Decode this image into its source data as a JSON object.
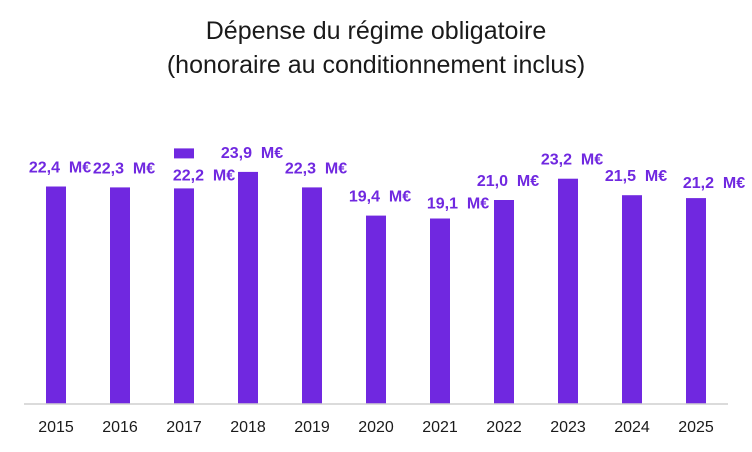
{
  "chart_data": {
    "type": "bar",
    "title": "Dépense du régime obligatoire",
    "subtitle": "(honoraire au conditionnement inclus)",
    "categories": [
      "2015",
      "2016",
      "2017",
      "2018",
      "2019",
      "2020",
      "2021",
      "2022",
      "2023",
      "2024",
      "2025"
    ],
    "values": [
      22.4,
      22.3,
      22.2,
      23.9,
      22.3,
      19.4,
      19.1,
      21.0,
      23.2,
      21.5,
      21.2
    ],
    "data_labels": [
      "22,4  M€",
      "22,3  M€",
      "22,2  M€",
      "23,9  M€",
      "22,3  M€",
      "19,4  M€",
      "19,1  M€",
      "21,0  M€",
      "23,2  M€",
      "21,5  M€",
      "21,2  M€"
    ],
    "xlabel": "",
    "ylabel": "",
    "ylim": [
      0,
      24.3
    ],
    "grid": false,
    "legend": "none",
    "bar_color": "#7028E0",
    "label_color": "#7028E0"
  }
}
